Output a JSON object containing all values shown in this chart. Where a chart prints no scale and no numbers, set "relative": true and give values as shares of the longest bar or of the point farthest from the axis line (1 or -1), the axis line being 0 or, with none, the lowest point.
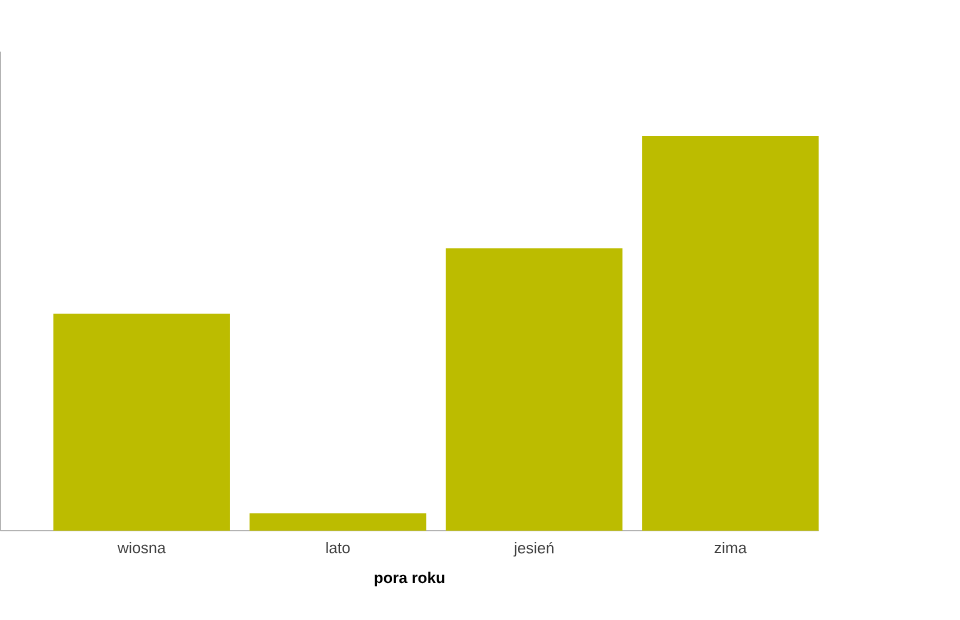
{
  "chart_data": {
    "type": "bar",
    "xlabel": "pora roku",
    "categories": [
      "wiosna",
      "lato",
      "jesień",
      "zima"
    ],
    "values": [
      0.55,
      0.044,
      0.716,
      1
    ],
    "color": "#bcbc00",
    "relative": true
  }
}
